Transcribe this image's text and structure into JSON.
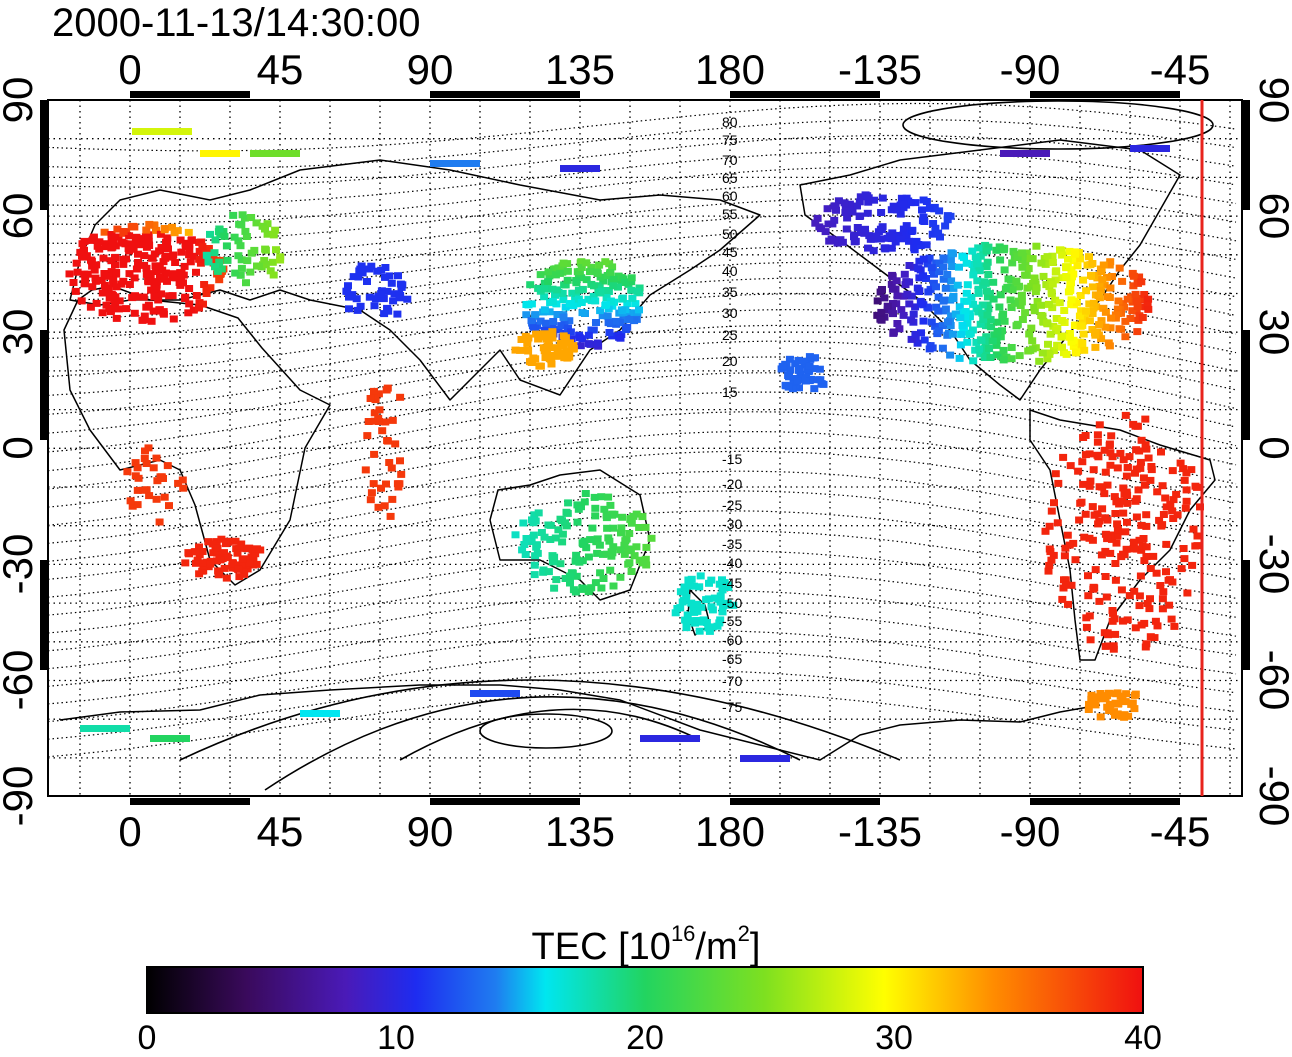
{
  "title": "2000-11-13/14:30:00",
  "map": {
    "lon_ticks_top": [
      "0",
      "45",
      "90",
      "135",
      "180",
      "-135",
      "-90",
      "-45"
    ],
    "lon_ticks_bottom": [
      "0",
      "45",
      "90",
      "135",
      "180",
      "-135",
      "-90",
      "-45"
    ],
    "lat_ticks_left": [
      "90",
      "60",
      "30",
      "0",
      "-30",
      "-60",
      "-90"
    ],
    "lat_ticks_right": [
      "90",
      "60",
      "30",
      "0",
      "-30",
      "-60",
      "-90"
    ],
    "contour_labels": [
      "80",
      "75",
      "70",
      "65",
      "60",
      "55",
      "50",
      "45",
      "40",
      "35",
      "30",
      "25",
      "20",
      "15",
      "-15",
      "-20",
      "-25",
      "-30",
      "-35",
      "-40",
      "-45",
      "-50",
      "-55",
      "-60",
      "-65",
      "-70",
      "-75"
    ],
    "terminator_color": "#e8231c"
  },
  "colorbar": {
    "label_main": "TEC  [10",
    "label_exp1": "16",
    "label_mid": "/m",
    "label_exp2": "2",
    "label_end": "]",
    "min": 0,
    "max": 40,
    "tick_labels": [
      "0",
      "10",
      "20",
      "30",
      "40"
    ],
    "colormap": "jet-like: black-purple-blue-cyan-green-yellow-orange-red"
  }
}
